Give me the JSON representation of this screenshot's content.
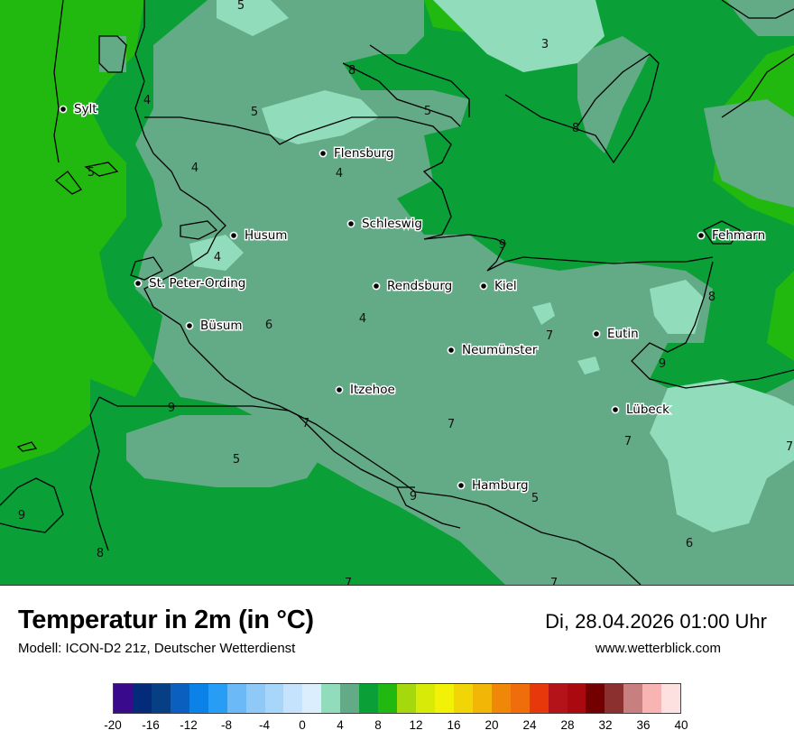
{
  "map": {
    "cities": [
      {
        "name": "Sylt"
      },
      {
        "name": "Flensburg"
      },
      {
        "name": "Schleswig"
      },
      {
        "name": "Husum"
      },
      {
        "name": "St. Peter-Ording"
      },
      {
        "name": "Rendsburg"
      },
      {
        "name": "Kiel"
      },
      {
        "name": "Fehmarn"
      },
      {
        "name": "Büsum"
      },
      {
        "name": "Eutin"
      },
      {
        "name": "Neumünster"
      },
      {
        "name": "Itzehoe"
      },
      {
        "name": "Lübeck"
      },
      {
        "name": "Hamburg"
      }
    ],
    "contour_labels": [
      "5",
      "3",
      "8",
      "4",
      "5",
      "8",
      "4",
      "4",
      "5",
      "4",
      "6",
      "4",
      "9",
      "8",
      "7",
      "9",
      "9",
      "7",
      "5",
      "5",
      "9",
      "8",
      "7",
      "7",
      "6",
      "7",
      "7"
    ],
    "colors": {
      "sea": "#21b90f",
      "band_6_8": "#0aa037",
      "band_4_6": "#63aa86",
      "band_2_4": "#91ddbb",
      "coast": "#000000"
    }
  },
  "footer": {
    "title": "Temperatur in 2m (in °C)",
    "model": "Modell: ICON-D2 21z, Deutscher Wetterdienst",
    "datetime": "Di, 28.04.2026 01:00 Uhr",
    "website": "www.wetterblick.com"
  },
  "legend": {
    "colors": [
      "#3a0a8c",
      "#042a7a",
      "#073f85",
      "#0a5fbf",
      "#0a82e8",
      "#289df5",
      "#6bbaf7",
      "#8ec9f8",
      "#a8d6fb",
      "#c5e3fc",
      "#dbeefe",
      "#91ddbb",
      "#63aa86",
      "#0aa037",
      "#21b90f",
      "#a6d80e",
      "#d8eb08",
      "#f1f208",
      "#f2d507",
      "#f2b706",
      "#f08708",
      "#ef6d0a",
      "#e7380c",
      "#b4131a",
      "#a90a10",
      "#720000",
      "#8b2f2f",
      "#c77f7f",
      "#f8b3b3",
      "#fde0e0"
    ],
    "ticks": [
      "-20",
      "-16",
      "-12",
      "-8",
      "-4",
      "0",
      "4",
      "8",
      "12",
      "16",
      "20",
      "24",
      "28",
      "32",
      "36",
      "40"
    ]
  }
}
